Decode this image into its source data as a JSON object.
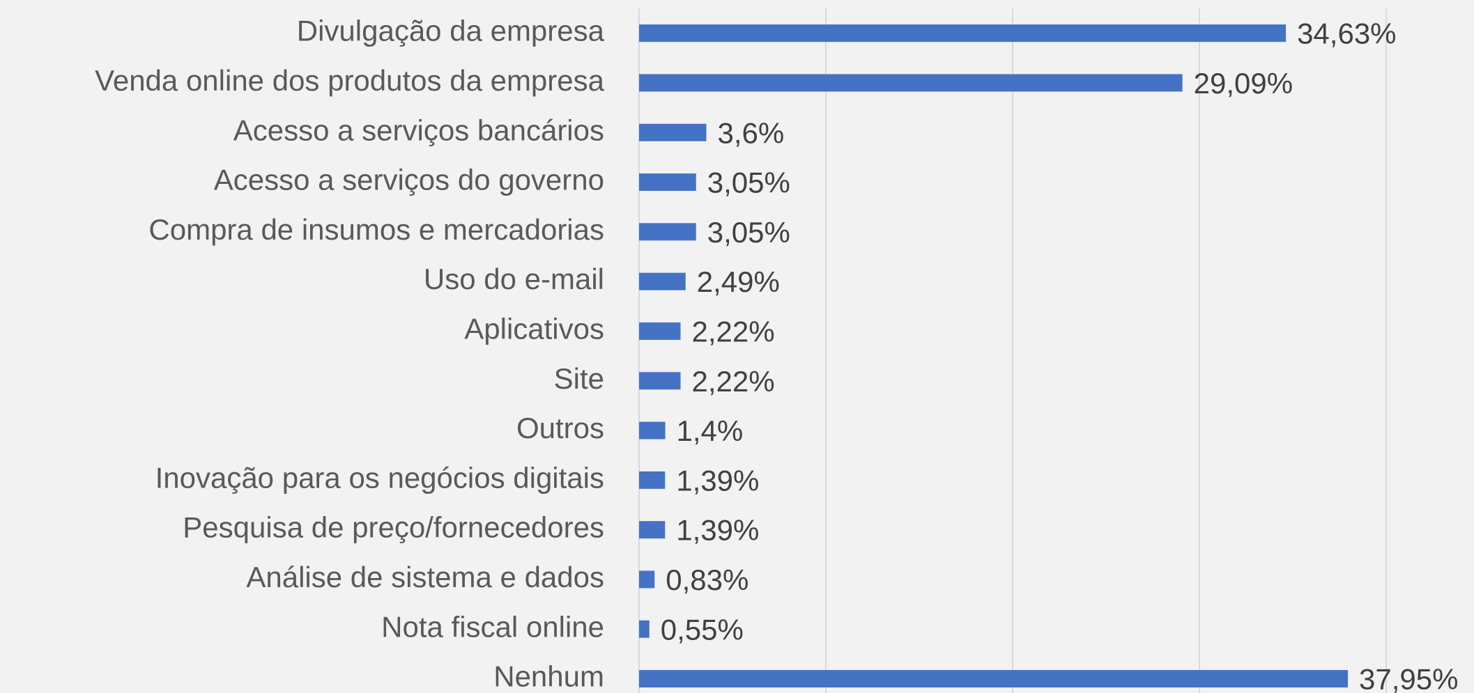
{
  "chart_data": {
    "type": "barh",
    "categories": [
      "Divulgação da empresa",
      "Venda online dos produtos da empresa",
      "Acesso a serviços bancários",
      "Acesso a serviços do governo",
      "Compra de insumos e mercadorias",
      "Uso do e-mail",
      "Aplicativos",
      "Site",
      "Outros",
      "Inovação para os negócios digitais",
      "Pesquisa de preço/fornecedores",
      "Análise de sistema e dados",
      "Nota fiscal online",
      "Nenhum"
    ],
    "values": [
      34.63,
      29.09,
      3.6,
      3.05,
      3.05,
      2.49,
      2.22,
      2.22,
      1.4,
      1.39,
      1.39,
      0.83,
      0.55,
      37.95
    ],
    "value_labels": [
      "34,63%",
      "29,09%",
      "3,6%",
      "3,05%",
      "3,05%",
      "2,49%",
      "2,22%",
      "2,22%",
      "1,4%",
      "1,39%",
      "1,39%",
      "0,83%",
      "0,55%",
      "37,95%"
    ],
    "color": "#4472c4",
    "xlim": [
      0,
      40
    ],
    "xticks": [
      0,
      10,
      20,
      30,
      40
    ],
    "grid": true
  }
}
